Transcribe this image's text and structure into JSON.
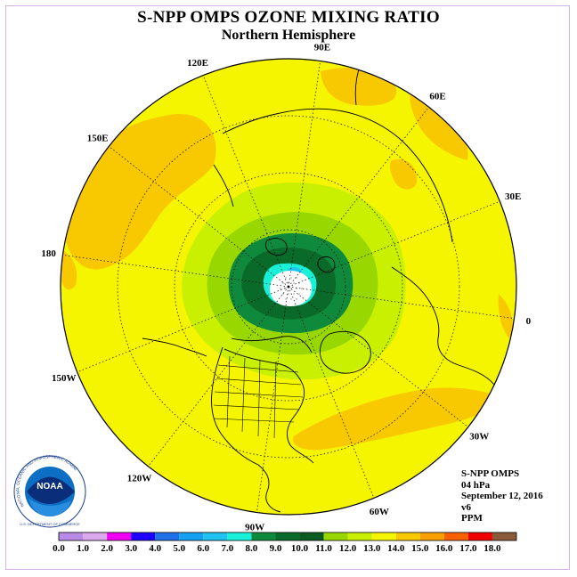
{
  "title": "S-NPP OMPS OZONE MIXING RATIO",
  "subtitle": "Northern Hemisphere",
  "info": {
    "instrument": "S-NPP OMPS",
    "level": "04 hPa",
    "date": "September 12, 2016",
    "version": "v6",
    "units": "PPM"
  },
  "logo": {
    "text": "NOAA",
    "ring_text": "NATIONAL OCEANIC AND ATMOSPHERIC ADMINISTRATION",
    "ring_text_bottom": "U.S. DEPARTMENT OF COMMERCE"
  },
  "longitude_labels": [
    {
      "text": "90E",
      "lon": 90
    },
    {
      "text": "60E",
      "lon": 60
    },
    {
      "text": "30E",
      "lon": 30
    },
    {
      "text": "0",
      "lon": 0
    },
    {
      "text": "30W",
      "lon": -30
    },
    {
      "text": "60W",
      "lon": -60
    },
    {
      "text": "90W",
      "lon": -90
    },
    {
      "text": "120W",
      "lon": -120
    },
    {
      "text": "150W",
      "lon": -150
    },
    {
      "text": "180",
      "lon": 180
    },
    {
      "text": "150E",
      "lon": 150
    },
    {
      "text": "120E",
      "lon": 120
    }
  ],
  "colorbar": {
    "ticks": [
      "0.0",
      "1.0",
      "2.0",
      "3.0",
      "4.0",
      "5.0",
      "6.0",
      "7.0",
      "8.0",
      "9.0",
      "10.0",
      "11.0",
      "12.0",
      "13.0",
      "14.0",
      "15.0",
      "16.0",
      "17.0",
      "18.0"
    ],
    "colors": [
      "#b98ae6",
      "#dba8ee",
      "#f000f0",
      "#1e00ff",
      "#1f6fe8",
      "#14a0f0",
      "#20c2f2",
      "#18f0d8",
      "#0f8a3c",
      "#0a6a2a",
      "#0a5a22",
      "#98d800",
      "#c8f000",
      "#f5f500",
      "#f8c800",
      "#f8a000",
      "#f86000",
      "#f00000",
      "#8b5a3a"
    ]
  },
  "map_colors": {
    "background": "#f5f500",
    "orange": "#f8c800",
    "light_green": "#c8f000",
    "green": "#98d800",
    "dark_green": "#0a6a2a",
    "mid_green": "#0f8a3c",
    "cyan": "#18f0d8",
    "light_cyan": "#20c2f2",
    "pole": "#ffffff"
  }
}
